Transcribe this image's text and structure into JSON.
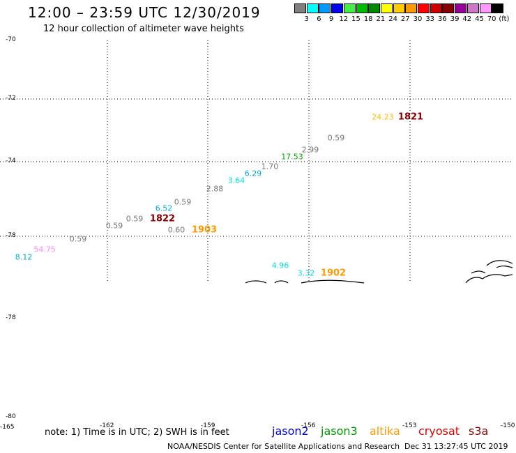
{
  "title": "12:00 – 23:59 UTC 12/30/2019",
  "subtitle": "12 hour collection of altimeter wave heights",
  "colorbar": {
    "unit": "(ft)",
    "bins": [
      {
        "label": "3",
        "color": "#808080"
      },
      {
        "label": "6",
        "color": "#00ffff"
      },
      {
        "label": "9",
        "color": "#0099ff"
      },
      {
        "label": "12",
        "color": "#0000ee"
      },
      {
        "label": "15",
        "color": "#44ee44"
      },
      {
        "label": "18",
        "color": "#00bb00"
      },
      {
        "label": "21",
        "color": "#008800"
      },
      {
        "label": "24",
        "color": "#ffff00"
      },
      {
        "label": "27",
        "color": "#ffcc00"
      },
      {
        "label": "30",
        "color": "#ff9900"
      },
      {
        "label": "33",
        "color": "#ff0000"
      },
      {
        "label": "36",
        "color": "#cc0000"
      },
      {
        "label": "39",
        "color": "#880000"
      },
      {
        "label": "42",
        "color": "#990099"
      },
      {
        "label": "45",
        "color": "#cc77cc"
      },
      {
        "label": "70",
        "color": "#ff99ff"
      },
      {
        "label": "",
        "color": "#000000"
      }
    ]
  },
  "map": {
    "lat_labels": [
      "-70",
      "-72",
      "-74",
      "-78",
      "-78",
      "-80"
    ],
    "lon_labels": [
      "-165",
      "-162",
      "-159",
      "-156",
      "-153",
      "-150"
    ],
    "observations": [
      {
        "text": "24.23",
        "color": "#ffbb00"
      },
      {
        "text": "0.59",
        "color": "#777777"
      },
      {
        "text": "2.99",
        "color": "#777777"
      },
      {
        "text": "17.53",
        "color": "#00aa00"
      },
      {
        "text": "1.70",
        "color": "#777777"
      },
      {
        "text": "6.29",
        "color": "#00aadd"
      },
      {
        "text": "3.64",
        "color": "#00dddd"
      },
      {
        "text": "2.88",
        "color": "#777777"
      },
      {
        "text": "0.59",
        "color": "#777777"
      },
      {
        "text": "6.52",
        "color": "#00aadd"
      },
      {
        "text": "0.59",
        "color": "#777777"
      },
      {
        "text": "0.59",
        "color": "#777777"
      },
      {
        "text": "0.60",
        "color": "#777777"
      },
      {
        "text": "0.59",
        "color": "#777777"
      },
      {
        "text": "54.75",
        "color": "#ff88ff"
      },
      {
        "text": "8.12",
        "color": "#00aadd"
      },
      {
        "text": "4.96",
        "color": "#00dddd"
      },
      {
        "text": "3.32",
        "color": "#00dddd"
      }
    ],
    "time_labels": [
      {
        "text": "1821",
        "color": "#880000"
      },
      {
        "text": "1822",
        "color": "#880000"
      },
      {
        "text": "1903",
        "color": "#ff9900"
      },
      {
        "text": "1902",
        "color": "#ff9900"
      }
    ]
  },
  "note": "note: 1) Time is in UTC; 2) SWH is in feet",
  "legend": [
    {
      "text": "jason2",
      "color": "#0000dd"
    },
    {
      "text": "jason3",
      "color": "#009900"
    },
    {
      "text": "altika",
      "color": "#ff9900"
    },
    {
      "text": "cryosat",
      "color": "#dd0000"
    },
    {
      "text": "s3a",
      "color": "#880000"
    }
  ],
  "footer": {
    "credit": "NOAA/NESDIS Center for Satellite Applications and Research",
    "timestamp": "Dec 31 13:27:45 UTC 2019"
  }
}
